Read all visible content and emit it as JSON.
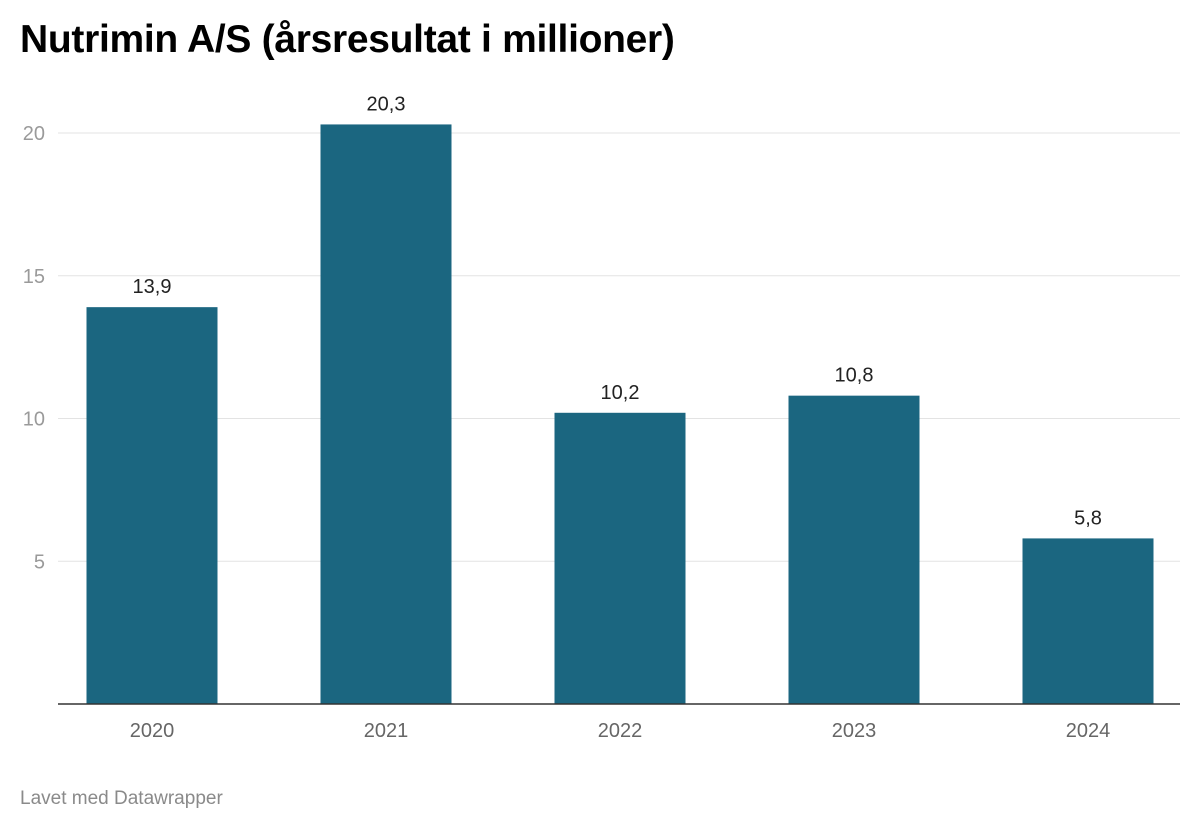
{
  "chart_data": {
    "type": "bar",
    "title": "Nutrimin A/S (årsresultat i millioner)",
    "categories": [
      "2020",
      "2021",
      "2022",
      "2023",
      "2024"
    ],
    "values": [
      13.9,
      20.3,
      10.2,
      10.8,
      5.8
    ],
    "value_labels": [
      "13,9",
      "20,3",
      "10,2",
      "10,8",
      "5,8"
    ],
    "yticks": [
      5,
      10,
      15,
      20
    ],
    "ylim": [
      0,
      21
    ],
    "xlabel": "",
    "ylabel": "",
    "grid": true,
    "bar_color": "#1b6680"
  },
  "footer": {
    "credit": "Lavet med Datawrapper"
  }
}
